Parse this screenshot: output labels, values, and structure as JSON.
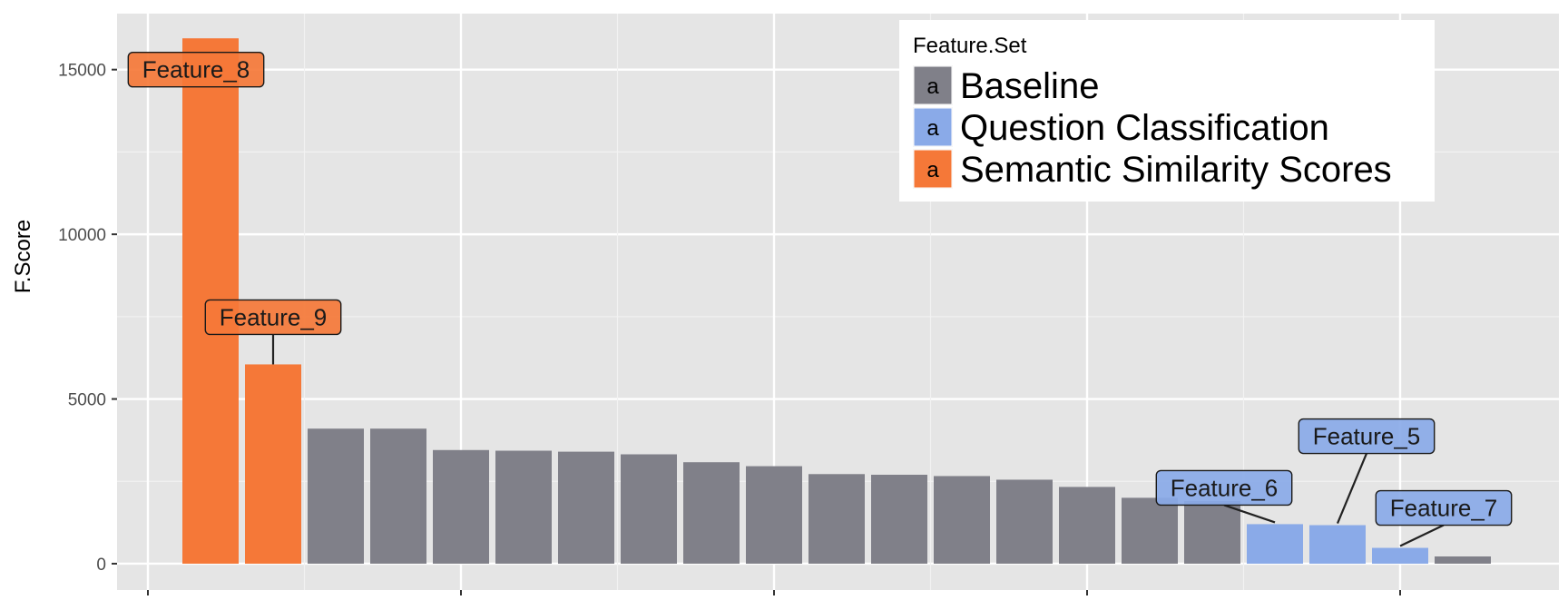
{
  "chart_data": {
    "type": "bar",
    "title": "",
    "xlabel": "",
    "ylabel": "F.Score",
    "ylim": [
      -800,
      16700
    ],
    "y_ticks": [
      0,
      5000,
      10000,
      15000
    ],
    "grid": true,
    "legend_position": "top-right",
    "legend": {
      "title": "Feature.Set",
      "key_glyph": "a",
      "entries": [
        {
          "name": "Baseline",
          "color": "#808089"
        },
        {
          "name": "Question Classification",
          "color": "#8aaae8"
        },
        {
          "name": "Semantic Similarity Scores",
          "color": "#f57838"
        }
      ]
    },
    "bars": [
      {
        "label": "Feature_8",
        "value": 15950,
        "set": "Semantic Similarity Scores"
      },
      {
        "label": "Feature_9",
        "value": 6050,
        "set": "Semantic Similarity Scores"
      },
      {
        "label": "",
        "value": 4100,
        "set": "Baseline"
      },
      {
        "label": "",
        "value": 4100,
        "set": "Baseline"
      },
      {
        "label": "",
        "value": 3450,
        "set": "Baseline"
      },
      {
        "label": "",
        "value": 3430,
        "set": "Baseline"
      },
      {
        "label": "",
        "value": 3400,
        "set": "Baseline"
      },
      {
        "label": "",
        "value": 3320,
        "set": "Baseline"
      },
      {
        "label": "",
        "value": 3080,
        "set": "Baseline"
      },
      {
        "label": "",
        "value": 2960,
        "set": "Baseline"
      },
      {
        "label": "",
        "value": 2720,
        "set": "Baseline"
      },
      {
        "label": "",
        "value": 2700,
        "set": "Baseline"
      },
      {
        "label": "",
        "value": 2660,
        "set": "Baseline"
      },
      {
        "label": "",
        "value": 2550,
        "set": "Baseline"
      },
      {
        "label": "",
        "value": 2330,
        "set": "Baseline"
      },
      {
        "label": "",
        "value": 2000,
        "set": "Baseline"
      },
      {
        "label": "",
        "value": 1900,
        "set": "Baseline"
      },
      {
        "label": "Feature_6",
        "value": 1200,
        "set": "Question Classification"
      },
      {
        "label": "Feature_5",
        "value": 1170,
        "set": "Question Classification"
      },
      {
        "label": "Feature_7",
        "value": 480,
        "set": "Question Classification"
      },
      {
        "label": "",
        "value": 220,
        "set": "Baseline"
      }
    ]
  }
}
